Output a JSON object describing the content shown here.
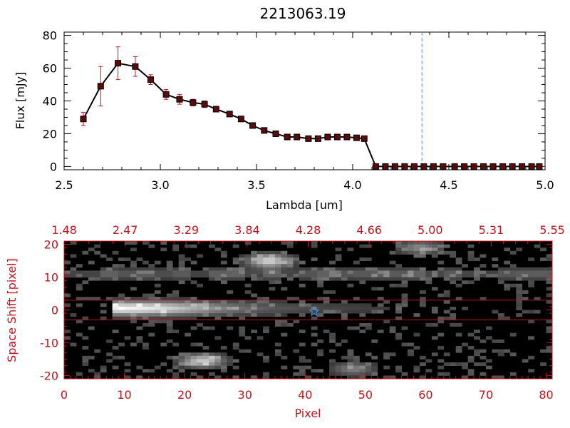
{
  "chart_data": [
    {
      "type": "line",
      "title": "2213063.19",
      "xlabel": "Lambda [um]",
      "ylabel": "Flux [mJy]",
      "xlim": [
        2.5,
        5.0
      ],
      "ylim": [
        -2,
        82
      ],
      "x_ticks": [
        "2.5",
        "3.0",
        "3.5",
        "4.0",
        "4.5",
        "5.0"
      ],
      "y_ticks": [
        "0",
        "20",
        "40",
        "60",
        "80"
      ],
      "marker_line_x": 4.36,
      "series": [
        {
          "x": [
            2.6,
            2.69,
            2.78,
            2.87,
            2.95,
            3.03,
            3.1,
            3.17,
            3.23,
            3.29,
            3.36,
            3.42,
            3.48,
            3.54,
            3.6,
            3.66,
            3.71,
            3.77,
            3.82,
            3.87,
            3.92,
            3.97,
            4.02,
            4.06,
            4.12,
            4.17,
            4.22,
            4.27,
            4.32,
            4.37,
            4.42,
            4.47,
            4.53,
            4.58,
            4.63,
            4.68,
            4.73,
            4.78,
            4.83,
            4.88,
            4.93,
            4.97
          ],
          "y": [
            29,
            49,
            63,
            61,
            53,
            44,
            41,
            39,
            38,
            35,
            32,
            29,
            25,
            22,
            20,
            18,
            18,
            17,
            17,
            18,
            18,
            18,
            17.5,
            17,
            0,
            0,
            0,
            0,
            0,
            0,
            0,
            0,
            0,
            0,
            0,
            0,
            0,
            0,
            0,
            0,
            0,
            0
          ],
          "err": [
            4,
            12,
            10,
            6,
            3,
            3,
            3,
            2,
            2,
            1.5,
            1,
            1,
            1,
            1,
            1,
            1,
            0.5,
            0.5,
            0.5,
            0.5,
            0.5,
            0.5,
            0.5,
            0.5,
            0,
            0,
            0,
            0,
            0,
            0,
            0,
            0,
            0,
            0,
            0,
            0,
            0,
            0,
            0,
            0,
            0,
            0
          ]
        }
      ],
      "colors": {
        "line": "#000000",
        "marker": "#5a0a0a",
        "errorbar": "#c0141c",
        "marker_line": "#4a90e2",
        "baseline_dash": "#c0141c"
      }
    },
    {
      "type": "heatmap",
      "xlabel": "Pixel",
      "ylabel": "Space Shift [pixel]",
      "xlim": [
        0,
        81
      ],
      "ylim": [
        -21,
        21
      ],
      "x_ticks": [
        "0",
        "10",
        "20",
        "30",
        "40",
        "50",
        "60",
        "70",
        "80"
      ],
      "y_ticks": [
        "20",
        "10",
        "0",
        "-10",
        "-20"
      ],
      "top_axis_ticks": [
        "1.48",
        "2.47",
        "3.29",
        "3.84",
        "4.28",
        "4.66",
        "5.00",
        "5.31",
        "5.55"
      ],
      "aperture_rows": [
        3,
        -3
      ],
      "star_marker": {
        "x": 41.5,
        "y": -0.5
      },
      "features": [
        {
          "kind": "trace",
          "x_start": 8,
          "x_end": 69,
          "y": 0.5,
          "peak_x": 11,
          "peak_intensity": 0.95
        },
        {
          "kind": "blob",
          "x": 34,
          "y": 15,
          "intensity": 0.8
        },
        {
          "kind": "blob",
          "x": 23,
          "y": -15.5,
          "intensity": 0.75
        },
        {
          "kind": "blob",
          "x": 48,
          "y": -18,
          "intensity": 0.4
        },
        {
          "kind": "blob",
          "x": 59,
          "y": 19,
          "intensity": 0.45
        },
        {
          "kind": "band",
          "x_start": 0,
          "x_end": 81,
          "y": 11,
          "intensity": 0.3
        }
      ],
      "colors": {
        "axis": "#c0141c",
        "aperture": "#c0141c",
        "star": "#4a90e2",
        "background": "#000000"
      }
    }
  ]
}
